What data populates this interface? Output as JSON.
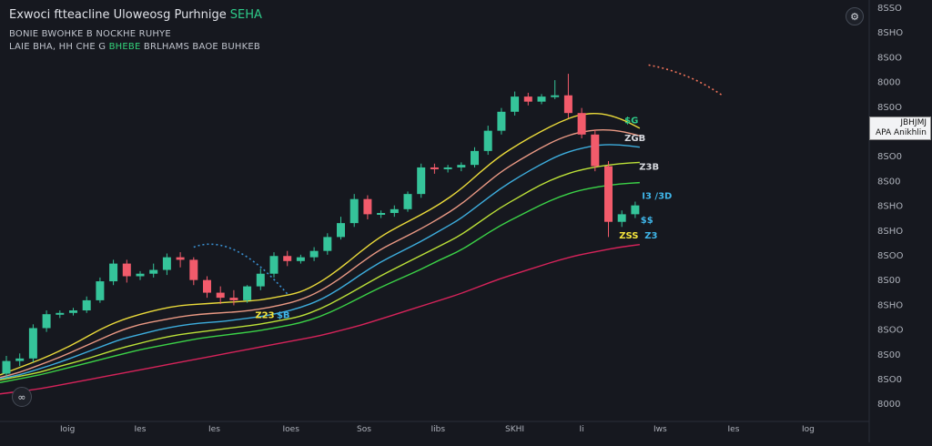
{
  "header": {
    "title": "Exwoci ftteacline Uloweosg Purhnige",
    "title_accent": "SEHA",
    "line1": "BONIE BWOHKE B NOCKHE RUHYE",
    "line2_a": "LAIE BHA, HH CHE G",
    "line2_hl": "BHEBE",
    "line2_b": "BRLHAMS BAOE BUHKEB"
  },
  "price_tag": {
    "line1": "JBHJMJ",
    "line2": "APA Anikhlin"
  },
  "colors": {
    "background": "#16181f",
    "up": "#35c49a",
    "down": "#f25b6b",
    "ma_yellow": "#f5e53c",
    "ma_salmon": "#f5a08a",
    "ma_blue": "#3fb5e8",
    "ma_yellowgreen": "#c5ec3a",
    "ma_green": "#3ddc4a",
    "ma_pink": "#e0245e",
    "forecast": "#3a8fd0",
    "forecast_end": "#f2735a"
  },
  "chart_data": {
    "type": "candlestick",
    "y_tick_labels": [
      "8SSO",
      "8SHO",
      "8S0O",
      "8000",
      "8S0O",
      "8S00",
      "8SO0",
      "8S00",
      "8SHO",
      "8SHO",
      "8SOO",
      "8S00",
      "8SHO",
      "8SOO",
      "8S00",
      "8SO0",
      "8000"
    ],
    "x_tick_labels": [
      "Ioig",
      "Ies",
      "Ies",
      "Ioes",
      "Sos",
      "Iibs",
      "SKHI",
      "Ii",
      "Iws",
      "Ies",
      "Iog"
    ],
    "candles": [
      {
        "o": 3.2,
        "h": 4.6,
        "l": 2.8,
        "c": 4.2
      },
      {
        "o": 4.2,
        "h": 4.8,
        "l": 3.8,
        "c": 4.4
      },
      {
        "o": 4.4,
        "h": 7.1,
        "l": 4.1,
        "c": 6.8
      },
      {
        "o": 6.8,
        "h": 8.2,
        "l": 6.5,
        "c": 7.9
      },
      {
        "o": 7.9,
        "h": 8.2,
        "l": 7.6,
        "c": 8.0
      },
      {
        "o": 8.0,
        "h": 8.4,
        "l": 7.8,
        "c": 8.2
      },
      {
        "o": 8.2,
        "h": 9.3,
        "l": 8.0,
        "c": 9.0
      },
      {
        "o": 9.0,
        "h": 10.8,
        "l": 8.8,
        "c": 10.5
      },
      {
        "o": 10.5,
        "h": 12.2,
        "l": 10.2,
        "c": 11.9
      },
      {
        "o": 11.9,
        "h": 12.2,
        "l": 10.4,
        "c": 10.9
      },
      {
        "o": 10.9,
        "h": 11.3,
        "l": 10.6,
        "c": 11.1
      },
      {
        "o": 11.1,
        "h": 11.9,
        "l": 10.8,
        "c": 11.4
      },
      {
        "o": 11.4,
        "h": 12.7,
        "l": 11.0,
        "c": 12.4
      },
      {
        "o": 12.4,
        "h": 12.8,
        "l": 11.6,
        "c": 12.2
      },
      {
        "o": 12.2,
        "h": 12.4,
        "l": 10.2,
        "c": 10.6
      },
      {
        "o": 10.6,
        "h": 10.9,
        "l": 9.2,
        "c": 9.6
      },
      {
        "o": 9.6,
        "h": 10.1,
        "l": 8.7,
        "c": 9.2
      },
      {
        "o": 9.2,
        "h": 9.8,
        "l": 8.6,
        "c": 9.0
      },
      {
        "o": 9.0,
        "h": 10.2,
        "l": 8.8,
        "c": 10.1
      },
      {
        "o": 10.1,
        "h": 11.5,
        "l": 9.8,
        "c": 11.1
      },
      {
        "o": 11.1,
        "h": 12.8,
        "l": 10.8,
        "c": 12.5
      },
      {
        "o": 12.5,
        "h": 12.9,
        "l": 11.7,
        "c": 12.1
      },
      {
        "o": 12.1,
        "h": 12.6,
        "l": 11.9,
        "c": 12.4
      },
      {
        "o": 12.4,
        "h": 13.2,
        "l": 12.1,
        "c": 12.9
      },
      {
        "o": 12.9,
        "h": 14.3,
        "l": 12.6,
        "c": 14.0
      },
      {
        "o": 14.0,
        "h": 15.6,
        "l": 13.8,
        "c": 15.1
      },
      {
        "o": 15.1,
        "h": 17.4,
        "l": 14.8,
        "c": 17.0
      },
      {
        "o": 17.0,
        "h": 17.3,
        "l": 15.4,
        "c": 15.8
      },
      {
        "o": 15.8,
        "h": 16.1,
        "l": 15.5,
        "c": 15.9
      },
      {
        "o": 15.9,
        "h": 16.5,
        "l": 15.6,
        "c": 16.2
      },
      {
        "o": 16.2,
        "h": 17.6,
        "l": 16.0,
        "c": 17.4
      },
      {
        "o": 17.4,
        "h": 19.8,
        "l": 17.1,
        "c": 19.5
      },
      {
        "o": 19.5,
        "h": 19.8,
        "l": 19.0,
        "c": 19.4
      },
      {
        "o": 19.4,
        "h": 19.7,
        "l": 19.1,
        "c": 19.5
      },
      {
        "o": 19.5,
        "h": 19.9,
        "l": 19.2,
        "c": 19.7
      },
      {
        "o": 19.7,
        "h": 21.1,
        "l": 19.5,
        "c": 20.8
      },
      {
        "o": 20.8,
        "h": 22.8,
        "l": 20.5,
        "c": 22.4
      },
      {
        "o": 22.4,
        "h": 24.2,
        "l": 22.1,
        "c": 23.9
      },
      {
        "o": 23.9,
        "h": 25.5,
        "l": 23.6,
        "c": 25.1
      },
      {
        "o": 25.1,
        "h": 25.4,
        "l": 24.4,
        "c": 24.7
      },
      {
        "o": 24.7,
        "h": 25.3,
        "l": 24.5,
        "c": 25.1
      },
      {
        "o": 25.1,
        "h": 26.4,
        "l": 24.9,
        "c": 25.2
      },
      {
        "o": 25.2,
        "h": 26.9,
        "l": 23.4,
        "c": 23.8
      },
      {
        "o": 23.8,
        "h": 24.2,
        "l": 21.8,
        "c": 22.1
      },
      {
        "o": 22.1,
        "h": 22.5,
        "l": 19.2,
        "c": 19.6
      },
      {
        "o": 19.6,
        "h": 20.0,
        "l": 14.0,
        "c": 15.2
      },
      {
        "o": 15.2,
        "h": 16.1,
        "l": 14.8,
        "c": 15.8
      },
      {
        "o": 15.8,
        "h": 16.8,
        "l": 15.5,
        "c": 16.5
      }
    ],
    "moving_averages": [
      {
        "color": "#f5e53c",
        "values": [
          3.1,
          3.7,
          4.3,
          5.0,
          5.8,
          6.7,
          7.4,
          7.9,
          8.3,
          8.6,
          8.7,
          8.8,
          8.9,
          9.0,
          9.3,
          9.6,
          10.4,
          11.5,
          12.8,
          14.0,
          14.9,
          15.7,
          16.6,
          17.7,
          19.1,
          20.4,
          21.4,
          22.3,
          23.1,
          23.7,
          23.8,
          23.4,
          22.6
        ]
      },
      {
        "color": "#f5a08a",
        "values": [
          2.9,
          3.3,
          3.9,
          4.5,
          5.2,
          5.9,
          6.6,
          7.1,
          7.4,
          7.7,
          7.9,
          8.0,
          8.1,
          8.3,
          8.6,
          9.0,
          9.7,
          10.7,
          11.9,
          13.0,
          13.8,
          14.6,
          15.5,
          16.5,
          17.8,
          19.1,
          20.1,
          21.0,
          21.8,
          22.3,
          22.5,
          22.4,
          22.0
        ]
      },
      {
        "color": "#3fb5e8",
        "values": [
          2.8,
          3.1,
          3.6,
          4.1,
          4.7,
          5.3,
          5.9,
          6.3,
          6.7,
          7.0,
          7.2,
          7.3,
          7.5,
          7.7,
          8.0,
          8.4,
          9.0,
          9.9,
          11.0,
          12.0,
          12.8,
          13.6,
          14.5,
          15.4,
          16.6,
          17.8,
          18.8,
          19.7,
          20.5,
          21.0,
          21.3,
          21.3,
          21.1
        ]
      },
      {
        "color": "#c5ec3a",
        "values": [
          2.7,
          3.0,
          3.3,
          3.8,
          4.2,
          4.7,
          5.2,
          5.6,
          6.0,
          6.3,
          6.5,
          6.7,
          6.9,
          7.1,
          7.4,
          7.7,
          8.3,
          9.1,
          10.0,
          10.9,
          11.7,
          12.5,
          13.3,
          14.1,
          15.2,
          16.3,
          17.2,
          18.1,
          18.8,
          19.3,
          19.6,
          19.8,
          19.9
        ]
      },
      {
        "color": "#3ddc4a",
        "values": [
          2.5,
          2.8,
          3.1,
          3.5,
          3.9,
          4.3,
          4.7,
          5.1,
          5.4,
          5.7,
          6.0,
          6.2,
          6.4,
          6.6,
          6.9,
          7.2,
          7.7,
          8.4,
          9.2,
          10.0,
          10.7,
          11.4,
          12.2,
          12.9,
          13.9,
          14.9,
          15.7,
          16.5,
          17.2,
          17.7,
          18.0,
          18.2,
          18.3
        ]
      },
      {
        "color": "#e0245e",
        "values": [
          1.6,
          1.8,
          2.0,
          2.3,
          2.6,
          2.9,
          3.2,
          3.5,
          3.8,
          4.1,
          4.4,
          4.7,
          5.0,
          5.3,
          5.6,
          5.9,
          6.2,
          6.6,
          7.0,
          7.5,
          8.0,
          8.5,
          9.0,
          9.5,
          10.1,
          10.7,
          11.2,
          11.7,
          12.2,
          12.6,
          12.9,
          13.2,
          13.4
        ]
      }
    ],
    "y_range": [
      0,
      30
    ],
    "grid": false,
    "legend_position": "top-left",
    "annotations": [
      {
        "text": "$G",
        "color": "#2ecc8a",
        "candle": 46.2,
        "price": 23.0
      },
      {
        "text": "ZGB",
        "color": "#d6d8de",
        "candle": 46.2,
        "price": 21.6
      },
      {
        "text": "Z3B",
        "color": "#d6d8de",
        "candle": 47.3,
        "price": 19.3
      },
      {
        "text": "I3 /3D",
        "color": "#3fb5e8",
        "candle": 47.5,
        "price": 17.0
      },
      {
        "text": "$$",
        "color": "#3fb5e8",
        "candle": 47.4,
        "price": 15.1
      },
      {
        "text": "ZSS",
        "color": "#f5e53c",
        "candle": 45.8,
        "price": 13.9
      },
      {
        "text": "Z3",
        "color": "#3fb5e8",
        "candle": 47.7,
        "price": 13.9
      },
      {
        "text": "Z23",
        "color": "#f5e53c",
        "candle": 18.6,
        "price": 7.6
      },
      {
        "text": "$B",
        "color": "#3fb5e8",
        "candle": 20.2,
        "price": 7.6
      },
      {
        "text": "$$",
        "color": "#3fb5e8",
        "candle": 0.6,
        "price": 1.5
      }
    ]
  }
}
